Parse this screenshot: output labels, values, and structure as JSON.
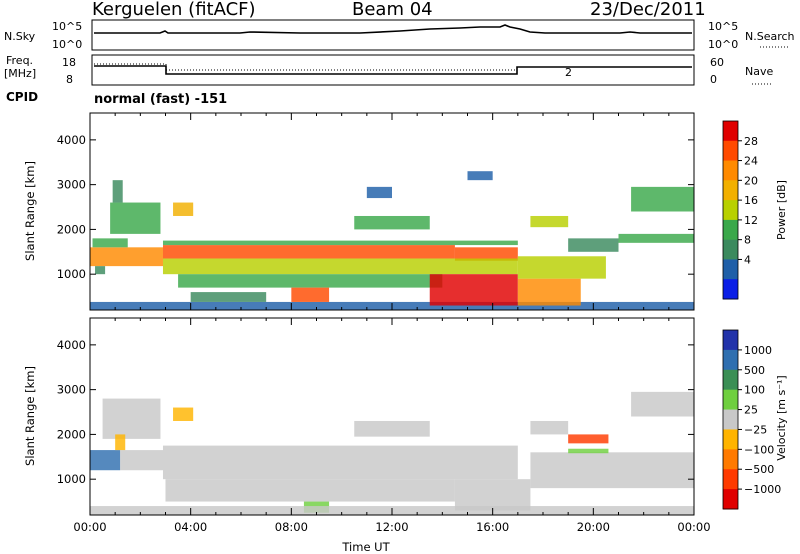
{
  "header": {
    "station": "Kerguelen (fitACF)",
    "beam": "Beam 04",
    "date": "23/Dec/2011"
  },
  "panels": {
    "nsky_label": "N.Sky",
    "nsky_ticks": [
      "10^5",
      "10^0"
    ],
    "nsearch_label": "N.Search",
    "nsearch_ticks": [
      "10^5",
      "10^0"
    ],
    "freq_label_1": "Freq.",
    "freq_label_2": "[MHz]",
    "freq_ticks": [
      "18",
      "8"
    ],
    "nave_label": "Nave",
    "nave_ticks": [
      "60",
      "0"
    ],
    "cpid_label": "CPID",
    "cpid_value": "normal (fast) -151",
    "nave_mark": "2"
  },
  "colorbars": {
    "power": {
      "title": "Power [dB]",
      "labels": [
        "28",
        "24",
        "20",
        "16",
        "12",
        "8",
        "4"
      ],
      "colors": [
        "#e00000",
        "#ff4a00",
        "#ff8a00",
        "#f2b000",
        "#b8d000",
        "#3aa84a",
        "#3b8a5e",
        "#1f5fa8",
        "#0a1ee6"
      ]
    },
    "velocity": {
      "title": "Velocity [m s⁻¹]",
      "labels": [
        "1000",
        "500",
        "100",
        "25",
        "−25",
        "−100",
        "−500",
        "−1000"
      ],
      "colors": [
        "#2233aa",
        "#2f6fb0",
        "#3b8f55",
        "#6fcf3f",
        "#c8c8c8",
        "#ffb400",
        "#ff7a00",
        "#ff3a00",
        "#e00000"
      ]
    }
  },
  "chart_data": [
    {
      "type": "heatmap",
      "title": "Power",
      "xlabel": "",
      "ylabel": "Slant Range [km]",
      "xlim": [
        0,
        24
      ],
      "ylim": [
        200,
        4600
      ],
      "yticks": [
        "1000",
        "2000",
        "3000",
        "4000"
      ],
      "xticks": [],
      "colorbar": "Power [dB]",
      "value_range": [
        0,
        30
      ],
      "bands": [
        {
          "x0": 0.0,
          "x1": 2.9,
          "y0": 1180,
          "y1": 1600,
          "value": 22
        },
        {
          "x0": 0.1,
          "x1": 1.5,
          "y0": 1600,
          "y1": 1800,
          "value": 12
        },
        {
          "x0": 0.2,
          "x1": 0.6,
          "y0": 1000,
          "y1": 1180,
          "value": 8
        },
        {
          "x0": 0.8,
          "x1": 2.8,
          "y0": 1900,
          "y1": 2600,
          "value": 12
        },
        {
          "x0": 0.9,
          "x1": 1.3,
          "y0": 2600,
          "y1": 3100,
          "value": 8
        },
        {
          "x0": 0.0,
          "x1": 24.0,
          "y0": 200,
          "y1": 380,
          "value": 6
        },
        {
          "x0": 2.9,
          "x1": 14.5,
          "y0": 1350,
          "y1": 1650,
          "value": 26
        },
        {
          "x0": 14.5,
          "x1": 17.0,
          "y0": 1300,
          "y1": 1600,
          "value": 24
        },
        {
          "x0": 2.9,
          "x1": 17.0,
          "y0": 1000,
          "y1": 1350,
          "value": 14
        },
        {
          "x0": 2.9,
          "x1": 17.0,
          "y0": 1650,
          "y1": 1750,
          "value": 10
        },
        {
          "x0": 3.5,
          "x1": 14.0,
          "y0": 700,
          "y1": 1000,
          "value": 12
        },
        {
          "x0": 8.0,
          "x1": 9.5,
          "y0": 380,
          "y1": 700,
          "value": 26
        },
        {
          "x0": 4.0,
          "x1": 7.0,
          "y0": 380,
          "y1": 600,
          "value": 8
        },
        {
          "x0": 13.5,
          "x1": 17.0,
          "y0": 300,
          "y1": 1000,
          "value": 27
        },
        {
          "x0": 17.0,
          "x1": 19.5,
          "y0": 300,
          "y1": 900,
          "value": 22
        },
        {
          "x0": 17.0,
          "x1": 20.5,
          "y0": 900,
          "y1": 1400,
          "value": 14
        },
        {
          "x0": 3.3,
          "x1": 4.1,
          "y0": 2300,
          "y1": 2600,
          "value": 18
        },
        {
          "x0": 10.5,
          "x1": 13.5,
          "y0": 2000,
          "y1": 2300,
          "value": 10
        },
        {
          "x0": 11.0,
          "x1": 12.0,
          "y0": 2700,
          "y1": 2950,
          "value": 6
        },
        {
          "x0": 15.0,
          "x1": 16.0,
          "y0": 3100,
          "y1": 3300,
          "value": 6
        },
        {
          "x0": 17.5,
          "x1": 19.0,
          "y0": 2050,
          "y1": 2300,
          "value": 14
        },
        {
          "x0": 19.0,
          "x1": 21.0,
          "y0": 1500,
          "y1": 1800,
          "value": 8
        },
        {
          "x0": 21.5,
          "x1": 24.0,
          "y0": 2400,
          "y1": 2950,
          "value": 10
        },
        {
          "x0": 21.0,
          "x1": 24.0,
          "y0": 1700,
          "y1": 1900,
          "value": 12
        }
      ]
    },
    {
      "type": "heatmap",
      "title": "Velocity",
      "xlabel": "Time UT",
      "ylabel": "Slant Range [km]",
      "xlim": [
        0,
        24
      ],
      "ylim": [
        200,
        4600
      ],
      "yticks": [
        "1000",
        "2000",
        "3000",
        "4000"
      ],
      "xticks": [
        "00:00",
        "04:00",
        "08:00",
        "12:00",
        "16:00",
        "20:00",
        "00:00"
      ],
      "colorbar": "Velocity [m s⁻¹]",
      "value_range": [
        -1000,
        1000
      ],
      "bands": [
        {
          "x0": 0.0,
          "x1": 1.2,
          "y0": 1200,
          "y1": 1650,
          "value": 600
        },
        {
          "x0": 1.2,
          "x1": 2.9,
          "y0": 1200,
          "y1": 1650,
          "value": 0
        },
        {
          "x0": 0.5,
          "x1": 2.8,
          "y0": 1900,
          "y1": 2800,
          "value": 0
        },
        {
          "x0": 2.9,
          "x1": 17.0,
          "y0": 1000,
          "y1": 1750,
          "value": 0
        },
        {
          "x0": 3.0,
          "x1": 14.5,
          "y0": 500,
          "y1": 1000,
          "value": 0
        },
        {
          "x0": 8.5,
          "x1": 9.5,
          "y0": 250,
          "y1": 500,
          "value": 120
        },
        {
          "x0": 14.5,
          "x1": 17.5,
          "y0": 300,
          "y1": 1000,
          "value": 0
        },
        {
          "x0": 17.5,
          "x1": 24.0,
          "y0": 800,
          "y1": 1600,
          "value": 0
        },
        {
          "x0": 0.0,
          "x1": 24.0,
          "y0": 200,
          "y1": 400,
          "value": 60
        },
        {
          "x0": 3.3,
          "x1": 4.1,
          "y0": 2300,
          "y1": 2600,
          "value": -300
        },
        {
          "x0": 1.0,
          "x1": 1.4,
          "y0": 1650,
          "y1": 2000,
          "value": -300
        },
        {
          "x0": 10.5,
          "x1": 13.5,
          "y0": 1950,
          "y1": 2300,
          "value": 0
        },
        {
          "x0": 17.5,
          "x1": 19.0,
          "y0": 2000,
          "y1": 2300,
          "value": 0
        },
        {
          "x0": 19.0,
          "x1": 20.6,
          "y0": 1800,
          "y1": 2000,
          "value": -600
        },
        {
          "x0": 19.0,
          "x1": 20.6,
          "y0": 1580,
          "y1": 1680,
          "value": 120
        },
        {
          "x0": 21.5,
          "x1": 24.0,
          "y0": 2400,
          "y1": 2950,
          "value": 0
        }
      ]
    }
  ]
}
